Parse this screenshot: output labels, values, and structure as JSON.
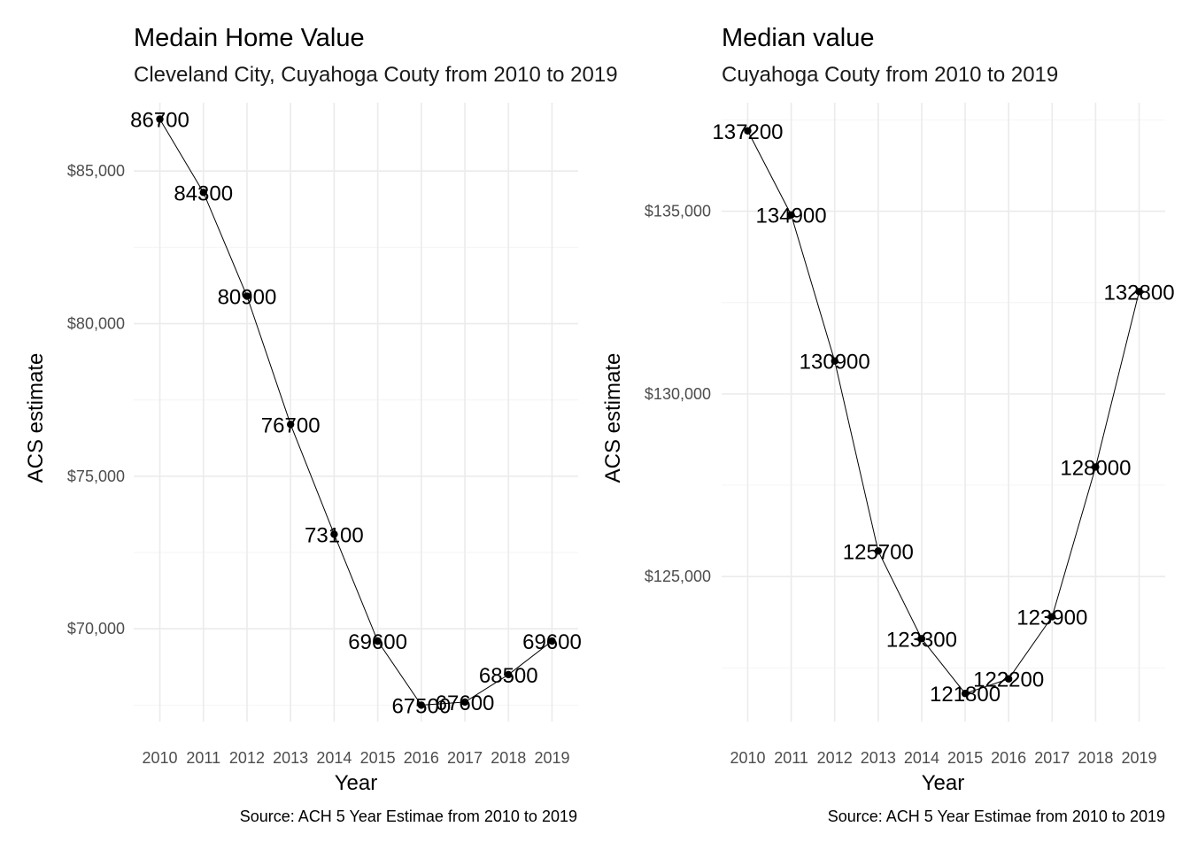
{
  "chart_data": [
    {
      "type": "line",
      "title": "Medain Home Value",
      "subtitle": "Cleveland City, Cuyahoga Couty from 2010 to 2019",
      "xlabel": "Year",
      "ylabel": "ACS estimate",
      "caption": "Source: ACH 5 Year Estimae from 2010 to 2019",
      "x": [
        2010,
        2011,
        2012,
        2013,
        2014,
        2015,
        2016,
        2017,
        2018,
        2019
      ],
      "values": [
        86700,
        84300,
        80900,
        76700,
        73100,
        69600,
        67500,
        67600,
        68500,
        69600
      ],
      "data_labels": [
        "86700",
        "84300",
        "80900",
        "76700",
        "73100",
        "69600",
        "67500",
        "67600",
        "68500",
        "69600"
      ],
      "y_ticks": [
        70000,
        75000,
        80000,
        85000
      ],
      "y_tick_labels": [
        "$70,000",
        "$75,000",
        "$80,000",
        "$85,000"
      ],
      "ylim": [
        66960,
        87240
      ],
      "grid": true,
      "legend": "none"
    },
    {
      "type": "line",
      "title": "Median value",
      "subtitle": "Cuyahoga Couty from 2010 to 2019",
      "xlabel": "Year",
      "ylabel": "ACS estimate",
      "caption": "Source: ACH 5 Year Estimae from 2010 to 2019",
      "x": [
        2010,
        2011,
        2012,
        2013,
        2014,
        2015,
        2016,
        2017,
        2018,
        2019
      ],
      "values": [
        137200,
        134900,
        130900,
        125700,
        123300,
        121800,
        122200,
        123900,
        128000,
        132800
      ],
      "data_labels": [
        "137200",
        "134900",
        "130900",
        "125700",
        "123300",
        "121800",
        "122200",
        "123900",
        "128000",
        "132800"
      ],
      "y_ticks": [
        125000,
        130000,
        135000
      ],
      "y_tick_labels": [
        "$125,000",
        "$130,000",
        "$135,000"
      ],
      "ylim": [
        121030,
        137970
      ],
      "grid": true,
      "legend": "none"
    }
  ]
}
